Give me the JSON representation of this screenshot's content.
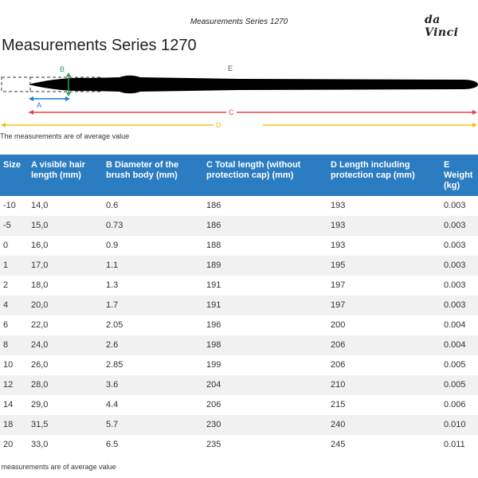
{
  "header": {
    "title": "Measurements Series 1270",
    "logo": "da Vinci"
  },
  "page": {
    "title": "Measurements Series 1270"
  },
  "diagram": {
    "labels": {
      "a": "A",
      "b": "B",
      "c": "C",
      "d": "D",
      "e": "E"
    },
    "colors": {
      "a": "#1e7bd6",
      "b": "#2aa05a",
      "c": "#e0404a",
      "d": "#f2c21b",
      "brush": "#000000"
    }
  },
  "note_top": "The measurements are of average value",
  "table": {
    "headers": [
      "Size",
      "A visible hair length (mm)",
      "B Diameter of the brush body (mm)",
      "C Total length (without protection cap) (mm)",
      "D Length including protection cap (mm)",
      "E Weight (kg)"
    ],
    "rows": [
      [
        "-10",
        "14,0",
        "0.6",
        "186",
        "193",
        "0.003"
      ],
      [
        "-5",
        "15,0",
        "0.73",
        "186",
        "193",
        "0.003"
      ],
      [
        "0",
        "16,0",
        "0.9",
        "188",
        "193",
        "0.003"
      ],
      [
        "1",
        "17,0",
        "1.1",
        "189",
        "195",
        "0.003"
      ],
      [
        "2",
        "18,0",
        "1.3",
        "191",
        "197",
        "0.003"
      ],
      [
        "4",
        "20,0",
        "1.7",
        "191",
        "197",
        "0.003"
      ],
      [
        "6",
        "22,0",
        "2.05",
        "196",
        "200",
        "0.004"
      ],
      [
        "8",
        "24,0",
        "2.6",
        "198",
        "206",
        "0.004"
      ],
      [
        "10",
        "26,0",
        "2.85",
        "199",
        "206",
        "0.005"
      ],
      [
        "12",
        "28,0",
        "3.6",
        "204",
        "210",
        "0.005"
      ],
      [
        "14",
        "29,0",
        "4.4",
        "206",
        "215",
        "0.006"
      ],
      [
        "18",
        "31,5",
        "5.7",
        "230",
        "240",
        "0.010"
      ],
      [
        "20",
        "33,0",
        "6.5",
        "235",
        "245",
        "0.011"
      ]
    ]
  },
  "note_bottom": "e measurements are of average value",
  "colors": {
    "table_header_bg": "#2b7cc0",
    "row_alt_bg": "#f1f1f1"
  }
}
